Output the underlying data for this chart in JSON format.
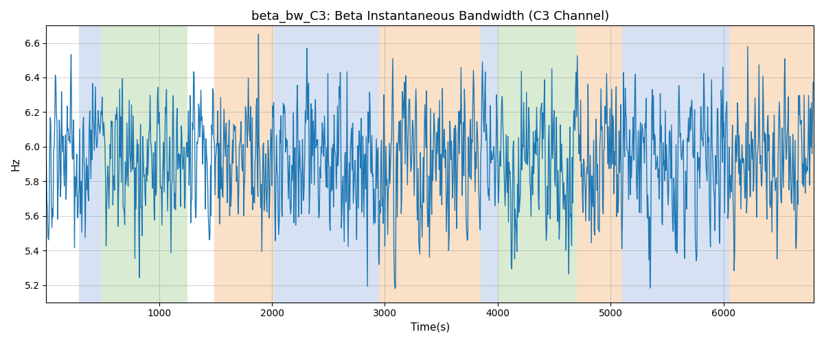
{
  "title": "beta_bw_C3: Beta Instantaneous Bandwidth (C3 Channel)",
  "xlabel": "Time(s)",
  "ylabel": "Hz",
  "ylim": [
    5.1,
    6.7
  ],
  "xlim": [
    0,
    6800
  ],
  "line_color": "#1f77b4",
  "line_width": 1.0,
  "bg_bands": [
    {
      "xmin": 290,
      "xmax": 490,
      "color": "#aec6e8",
      "alpha": 0.5
    },
    {
      "xmin": 490,
      "xmax": 1250,
      "color": "#b5d9a8",
      "alpha": 0.5
    },
    {
      "xmin": 1490,
      "xmax": 2020,
      "color": "#f5c89a",
      "alpha": 0.55
    },
    {
      "xmin": 2020,
      "xmax": 2950,
      "color": "#aec6e8",
      "alpha": 0.5
    },
    {
      "xmin": 2950,
      "xmax": 3850,
      "color": "#f5c89a",
      "alpha": 0.55
    },
    {
      "xmin": 3850,
      "xmax": 4000,
      "color": "#aec6e8",
      "alpha": 0.5
    },
    {
      "xmin": 4000,
      "xmax": 4700,
      "color": "#b5d9a8",
      "alpha": 0.5
    },
    {
      "xmin": 4700,
      "xmax": 5100,
      "color": "#f5c89a",
      "alpha": 0.55
    },
    {
      "xmin": 5100,
      "xmax": 6050,
      "color": "#aec6e8",
      "alpha": 0.5
    },
    {
      "xmin": 6050,
      "xmax": 6800,
      "color": "#f5c89a",
      "alpha": 0.55
    }
  ],
  "grid": true,
  "title_fontsize": 13,
  "label_fontsize": 11,
  "seed": 2023,
  "n_points": 6800,
  "x_start": 0,
  "x_end": 6799,
  "mean": 5.93,
  "std": 0.13,
  "ar_coef": 0.85,
  "yticks": [
    5.2,
    5.4,
    5.6,
    5.8,
    6.0,
    6.2,
    6.4,
    6.6
  ],
  "xticks": [
    1000,
    2000,
    3000,
    4000,
    5000,
    6000
  ]
}
